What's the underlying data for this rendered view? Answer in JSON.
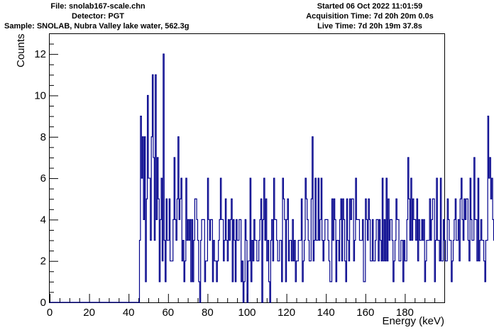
{
  "header": {
    "file": "File: snolab167-scale.chn",
    "detector": "Detector: PGT",
    "sample": "Sample: SNOLAB,  Nubra Valley lake water, 562.3g",
    "started": "Started 06 Oct 2022 11:01:59",
    "acquisition": "Acquisition Time: 7d 20h 20m 0.0s",
    "live": "Live Time: 7d 20h 19m 37.8s"
  },
  "chart_data": {
    "type": "histogram",
    "title": "",
    "xlabel": "Energy (keV)",
    "ylabel": "Counts",
    "xlim": [
      0,
      200
    ],
    "ylim": [
      0,
      13
    ],
    "xticks": [
      0,
      20,
      40,
      60,
      80,
      100,
      120,
      140,
      160,
      180
    ],
    "yticks": [
      0,
      2,
      4,
      6,
      8,
      10,
      12
    ],
    "grid": false,
    "line_color": "#00008b",
    "bin_width": 0.5,
    "x_start": 0,
    "counts": [
      0,
      0,
      0,
      0,
      0,
      0,
      0,
      0,
      0,
      0,
      0,
      0,
      0,
      0,
      0,
      0,
      0,
      0,
      0,
      0,
      0,
      0,
      0,
      0,
      0,
      0,
      0,
      0,
      0,
      0,
      0,
      0,
      0,
      0,
      0,
      0,
      0,
      0,
      0,
      0,
      0,
      0,
      0,
      0,
      0,
      0,
      0,
      0,
      0,
      0,
      0,
      0,
      0,
      0,
      0,
      0,
      0,
      0,
      0,
      0,
      0,
      0,
      0,
      0,
      0,
      0,
      0,
      0,
      0,
      0,
      0,
      0,
      0,
      0,
      0,
      0,
      0,
      0,
      0,
      0,
      0,
      0,
      0,
      0,
      0,
      0,
      0,
      0,
      0,
      0,
      0,
      3,
      9,
      6,
      8,
      4,
      8,
      1,
      5,
      10,
      6,
      6,
      3,
      8,
      11,
      7,
      3,
      11,
      4,
      7,
      5,
      1,
      4,
      6,
      2,
      12,
      3,
      1,
      5,
      3,
      3,
      5,
      2,
      2,
      2,
      4,
      7,
      4,
      3,
      5,
      8,
      4,
      5,
      6,
      2,
      3,
      1,
      2,
      6,
      3,
      4,
      3,
      4,
      1,
      4,
      1,
      3,
      5,
      5,
      4,
      3,
      1,
      0,
      3,
      4,
      4,
      4,
      1,
      2,
      2,
      6,
      4,
      3,
      4,
      4,
      1,
      3,
      2,
      2,
      1,
      2,
      3,
      4,
      6,
      4,
      4,
      2,
      3,
      5,
      3,
      2,
      4,
      3,
      4,
      5,
      1,
      4,
      3,
      1,
      4,
      3,
      3,
      4,
      4,
      1,
      2,
      0,
      1,
      4,
      3,
      0,
      2,
      2,
      6,
      1,
      3,
      2,
      4,
      3,
      3,
      2,
      2,
      3,
      4,
      5,
      0,
      4,
      6,
      3,
      5,
      2,
      3,
      1,
      0,
      3,
      4,
      2,
      6,
      4,
      4,
      3,
      2,
      2,
      3,
      3,
      1,
      6,
      5,
      4,
      1,
      4,
      5,
      2,
      3,
      3,
      2,
      4,
      2,
      3,
      1,
      2,
      2,
      3,
      3,
      3,
      5,
      1,
      2,
      3,
      6,
      5,
      4,
      3,
      2,
      2,
      5,
      8,
      2,
      3,
      6,
      3,
      3,
      6,
      3,
      4,
      6,
      3,
      2,
      3,
      4,
      4,
      4,
      3,
      2,
      1,
      1,
      5,
      3,
      5,
      4,
      1,
      3,
      3,
      2,
      4,
      5,
      2,
      5,
      4,
      2,
      1,
      5,
      3,
      2,
      5,
      4,
      5,
      5,
      2,
      3,
      6,
      4,
      4,
      4,
      3,
      3,
      3,
      4,
      1,
      1,
      5,
      4,
      3,
      5,
      4,
      2,
      2,
      4,
      2,
      2,
      3,
      4,
      4,
      2,
      4,
      3,
      2,
      6,
      2,
      4,
      2,
      6,
      2,
      5,
      3,
      4,
      4,
      3,
      1,
      2,
      3,
      5,
      4,
      4,
      2,
      2,
      3,
      3,
      1,
      3,
      2,
      2,
      4,
      7,
      5,
      3,
      6,
      3,
      5,
      4,
      4,
      3,
      5,
      2,
      4,
      3,
      3,
      4,
      3,
      4,
      1,
      2,
      3,
      3,
      3,
      5,
      3,
      4,
      5,
      5,
      1,
      3,
      6,
      3,
      3,
      2,
      6,
      2,
      2,
      4,
      3,
      2,
      2,
      5,
      4,
      3,
      3,
      1,
      2,
      3,
      4,
      5,
      3,
      3,
      4,
      2,
      5,
      6,
      4,
      3,
      5,
      4,
      5,
      5,
      3,
      2,
      6,
      4,
      3,
      3,
      7,
      4,
      4,
      2,
      6,
      2,
      3,
      4,
      3,
      3,
      2,
      1,
      3,
      3,
      9,
      6,
      7,
      5,
      6,
      4,
      3,
      5,
      2,
      2,
      4,
      7,
      6,
      3,
      6,
      5,
      3,
      4,
      3,
      3,
      3,
      2,
      1,
      3,
      4,
      4,
      2,
      8,
      3,
      5,
      7,
      4,
      5,
      3,
      6,
      2,
      2,
      3,
      3,
      5,
      4,
      3,
      1,
      6,
      7,
      4,
      5,
      2,
      2,
      4,
      4,
      3,
      2,
      3,
      4,
      4,
      7,
      1,
      4,
      6,
      3,
      4,
      4,
      6,
      5,
      2,
      4,
      3,
      6,
      2,
      9,
      4,
      5,
      4,
      2,
      3,
      1,
      4,
      2,
      2,
      3,
      4,
      3,
      2,
      4,
      3,
      2,
      6,
      5,
      4,
      3,
      3,
      4,
      2,
      6,
      5,
      3,
      4,
      5,
      3,
      3,
      4,
      1,
      2,
      6,
      5,
      3,
      4,
      3,
      5,
      2,
      2,
      4,
      4,
      5,
      3,
      4,
      2,
      3,
      7,
      4,
      5,
      3,
      3,
      2,
      4,
      3,
      4,
      5,
      4,
      3,
      2,
      4,
      2,
      5,
      3,
      3,
      6,
      3,
      4,
      2,
      5,
      3,
      4,
      5,
      1,
      5,
      3,
      2,
      4,
      4,
      4,
      2,
      1,
      4,
      5,
      3,
      4,
      3,
      3
    ]
  }
}
